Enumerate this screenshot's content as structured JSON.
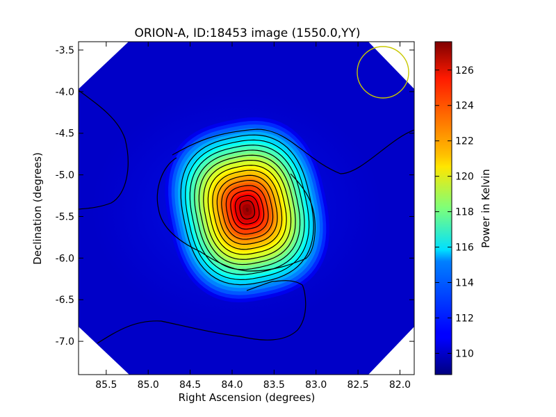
{
  "chart_data": {
    "type": "heatmap",
    "title": "ORION-A, ID:18453 image (1550.0,YY)",
    "xlabel": "Right Ascension (degrees)",
    "ylabel": "Declination (degrees)",
    "colorbar_label": "Power in Kelvin",
    "colormap": "jet",
    "x_inverted": true,
    "xlim": [
      85.83,
      81.83
    ],
    "ylim": [
      -7.4,
      -3.4
    ],
    "x_ticks": [
      "85.5",
      "85.0",
      "84.5",
      "84.0",
      "83.5",
      "83.0",
      "82.5",
      "82.0"
    ],
    "y_ticks": [
      "-3.5",
      "-4.0",
      "-4.5",
      "-5.0",
      "-5.5",
      "-6.0",
      "-6.5",
      "-7.0"
    ],
    "colorbar_range": [
      108.8,
      127.6
    ],
    "colorbar_ticks": [
      "110",
      "112",
      "114",
      "116",
      "118",
      "120",
      "122",
      "124",
      "126"
    ],
    "peak": {
      "ra": 83.82,
      "dec": -5.42,
      "value": 127.6
    },
    "beam_circle": {
      "ra": 82.17,
      "dec": -3.75,
      "radius_deg": 0.31,
      "color": "#c8c800"
    },
    "contour_count": 14,
    "contour_color": "#000000"
  }
}
